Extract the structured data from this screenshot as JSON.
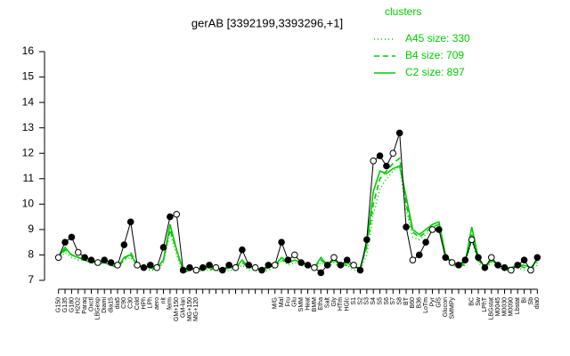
{
  "chart_data": {
    "type": "line",
    "title": "gerAB [3392199,3393296,+1]",
    "legend_title": "clusters",
    "categories": [
      "G150",
      "G135",
      "G180",
      "H2O2",
      "Paraq",
      "Oxctl",
      "LBGexp",
      "Diami",
      "dia15",
      "dia5",
      "C90",
      "C30",
      "Cold",
      "HPh",
      "LPh",
      "aero",
      "nit",
      "ferm",
      "GM+150",
      "GM-lan",
      "MG+150",
      "MG+120",
      null,
      null,
      null,
      null,
      null,
      null,
      null,
      null,
      null,
      null,
      null,
      "M/G",
      "Mal",
      "Fru",
      "Glu",
      "SMM",
      "Heat",
      "BMM",
      "Etha",
      "Salt",
      "Gly",
      "HTm",
      "HGlc",
      "S1",
      "S2",
      "S3",
      "S4",
      "S5",
      "S6",
      "S7",
      "S8",
      "BT",
      "B60",
      "B36",
      "LoTm",
      "Pyr",
      "GlS",
      "Glucon",
      "SMMPy",
      null,
      null,
      "BC",
      "Sw",
      "LPhT",
      "LBGstat",
      "M0045",
      "M0030",
      "M0090",
      "Lbstat",
      "BI",
      "Sb",
      "dia0"
    ],
    "values": [
      7.9,
      8.5,
      8.7,
      8.1,
      7.9,
      7.8,
      7.7,
      7.8,
      7.7,
      7.6,
      8.4,
      9.3,
      7.6,
      7.5,
      7.6,
      7.5,
      8.3,
      9.5,
      9.6,
      7.4,
      7.5,
      7.4,
      7.5,
      7.6,
      7.5,
      7.4,
      7.6,
      7.5,
      8.2,
      7.6,
      7.5,
      7.4,
      7.6,
      7.6,
      8.5,
      7.8,
      8.0,
      7.7,
      7.6,
      7.5,
      7.3,
      7.6,
      7.9,
      7.6,
      7.8,
      7.6,
      7.4,
      8.6,
      11.7,
      11.9,
      11.5,
      12.0,
      12.8,
      9.1,
      7.8,
      8.0,
      8.5,
      9.0,
      9.0,
      7.9,
      7.7,
      7.6,
      7.8,
      8.6,
      7.9,
      7.5,
      7.9,
      7.6,
      7.5,
      7.4,
      7.6,
      7.8,
      7.4,
      7.9
    ],
    "color": "#000000",
    "series": [
      {
        "name": "A45 size: 330",
        "color": "#00cc00",
        "dash": "1,3",
        "values": [
          7.8,
          8.1,
          7.9,
          7.8,
          7.8,
          7.7,
          7.6,
          7.7,
          7.6,
          7.5,
          7.8,
          7.9,
          7.6,
          7.5,
          7.4,
          7.4,
          7.7,
          8.9,
          8.0,
          7.3,
          7.4,
          7.3,
          7.4,
          7.4,
          7.4,
          7.3,
          7.4,
          7.4,
          7.6,
          7.4,
          7.4,
          7.3,
          7.4,
          7.5,
          7.8,
          7.6,
          7.7,
          7.6,
          7.5,
          7.4,
          7.7,
          7.5,
          7.7,
          7.5,
          7.6,
          7.4,
          7.4,
          8.0,
          9.6,
          10.6,
          11.0,
          11.3,
          11.5,
          9.8,
          8.7,
          8.6,
          8.8,
          9.0,
          9.1,
          7.9,
          7.6,
          7.5,
          7.6,
          8.6,
          7.7,
          7.4,
          7.7,
          7.5,
          7.4,
          7.4,
          7.5,
          7.4,
          7.4,
          7.6
        ]
      },
      {
        "name": "B4 size: 709",
        "color": "#00cc00",
        "dash": "6,4",
        "values": [
          7.8,
          8.2,
          8.0,
          7.9,
          7.8,
          7.7,
          7.7,
          7.7,
          7.6,
          7.5,
          7.8,
          8.1,
          7.6,
          7.5,
          7.5,
          7.4,
          7.8,
          9.0,
          8.2,
          7.3,
          7.4,
          7.4,
          7.5,
          7.4,
          7.5,
          7.4,
          7.5,
          7.5,
          7.7,
          7.5,
          7.5,
          7.4,
          7.5,
          7.6,
          7.8,
          7.7,
          7.8,
          7.7,
          7.6,
          7.5,
          7.8,
          7.6,
          7.8,
          7.6,
          7.6,
          7.5,
          7.5,
          8.3,
          10.0,
          11.0,
          11.3,
          11.6,
          11.8,
          10.0,
          8.9,
          8.7,
          8.9,
          9.1,
          9.2,
          8.0,
          7.7,
          7.6,
          7.6,
          8.8,
          7.8,
          7.5,
          7.8,
          7.6,
          7.5,
          7.5,
          7.6,
          7.5,
          7.5,
          7.7
        ]
      },
      {
        "name": "C2 size: 897",
        "color": "#00cc00",
        "dash": "none",
        "values": [
          7.9,
          8.3,
          8.0,
          7.9,
          7.8,
          7.7,
          7.7,
          7.7,
          7.6,
          7.5,
          7.9,
          8.0,
          7.6,
          7.5,
          7.5,
          7.5,
          7.8,
          9.2,
          8.2,
          7.4,
          7.5,
          7.4,
          7.5,
          7.5,
          7.5,
          7.4,
          7.5,
          7.5,
          7.8,
          7.5,
          7.5,
          7.4,
          7.5,
          7.6,
          7.9,
          7.7,
          7.8,
          7.7,
          7.6,
          7.5,
          7.9,
          7.6,
          7.8,
          7.6,
          7.7,
          7.5,
          7.5,
          8.4,
          10.5,
          11.3,
          11.2,
          11.4,
          11.5,
          10.3,
          9.0,
          8.8,
          9.0,
          9.2,
          9.3,
          8.0,
          7.7,
          7.6,
          7.7,
          9.1,
          7.9,
          7.5,
          7.8,
          7.6,
          7.5,
          7.5,
          7.6,
          7.6,
          7.5,
          7.8
        ]
      }
    ],
    "ylim": [
      7,
      16
    ],
    "yticks": [
      7,
      8,
      9,
      10,
      11,
      12,
      13,
      14,
      15,
      16
    ]
  }
}
